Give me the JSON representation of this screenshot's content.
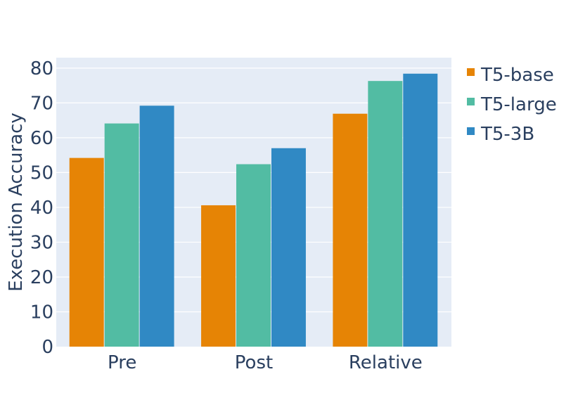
{
  "chart_data": {
    "type": "bar",
    "title": "",
    "xlabel": "",
    "ylabel": "Execution Accuracy",
    "categories": [
      "Pre",
      "Post",
      "Relative"
    ],
    "ylim": [
      0,
      83
    ],
    "yticks": [
      0,
      10,
      20,
      30,
      40,
      50,
      60,
      70,
      80
    ],
    "grid": true,
    "legend_position": "top-right",
    "background_color": "#e5ecf6",
    "series": [
      {
        "name": "T5-base",
        "color": "#e68405",
        "values": [
          54.2,
          40.6,
          66.9
        ]
      },
      {
        "name": "T5-large",
        "color": "#52bca3",
        "values": [
          64.1,
          52.4,
          76.3
        ]
      },
      {
        "name": "T5-3B",
        "color": "#3089c4",
        "values": [
          69.2,
          57.0,
          78.4
        ]
      }
    ]
  }
}
